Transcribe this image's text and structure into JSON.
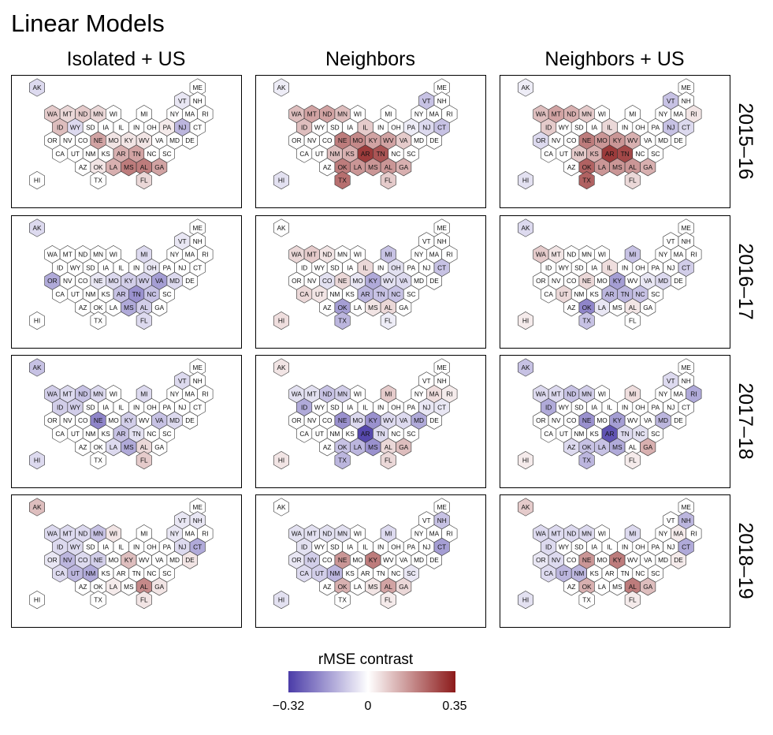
{
  "chart_data": {
    "type": "heatmap",
    "title": "Linear Models",
    "columns": [
      "Isolated + US",
      "Neighbors",
      "Neighbors + US"
    ],
    "rows": [
      "2015–16",
      "2016–17",
      "2017–18",
      "2018–19"
    ],
    "states": [
      "AK",
      "ME",
      "VT",
      "NH",
      "WA",
      "MT",
      "ND",
      "MN",
      "WI",
      "MI",
      "NY",
      "MA",
      "RI",
      "ID",
      "WY",
      "SD",
      "IA",
      "IL",
      "IN",
      "OH",
      "PA",
      "NJ",
      "CT",
      "OR",
      "NV",
      "CO",
      "NE",
      "MO",
      "KY",
      "WV",
      "VA",
      "MD",
      "DE",
      "CA",
      "UT",
      "NM",
      "KS",
      "AR",
      "TN",
      "NC",
      "SC",
      "AZ",
      "OK",
      "LA",
      "MS",
      "AL",
      "GA",
      "HI",
      "TX",
      "FL"
    ],
    "legend": {
      "title": "rMSE contrast",
      "min": -0.32,
      "max": 0.35,
      "tick_values": [
        -0.32,
        0,
        0.35
      ],
      "tick_labels": [
        "−0.32",
        "0",
        "0.35"
      ],
      "low_color": "#4b3ca8",
      "mid_color": "#ffffff",
      "high_color": "#8c1a1a"
    },
    "panels": [
      [
        {
          "NJ": -0.12,
          "NE": 0.14,
          "AR": 0.12,
          "TN": 0.14,
          "MS": 0.2,
          "AL": 0.2,
          "GA": 0.14,
          "LA": 0.12,
          "WA": 0.08,
          "MT": 0.06,
          "ND": 0.08,
          "MN": 0.06,
          "ID": 0.1,
          "WY": -0.06,
          "FL": 0.06,
          "KY": 0.04,
          "WV": 0.04,
          "MO": 0.04,
          "OK": 0.04,
          "AK": -0.06,
          "VT": -0.04,
          "PA": 0.03
        },
        {
          "WA": 0.1,
          "MT": 0.14,
          "ND": 0.14,
          "MN": 0.1,
          "ID": 0.1,
          "IL": 0.08,
          "NE": 0.2,
          "MO": 0.18,
          "KY": 0.14,
          "WV": 0.14,
          "VA": 0.08,
          "NM": 0.1,
          "KS": 0.12,
          "AR": 0.3,
          "TN": 0.26,
          "OK": 0.2,
          "LA": 0.16,
          "MS": 0.16,
          "AL": 0.16,
          "GA": 0.12,
          "TX": 0.22,
          "FL": 0.08,
          "VT": -0.1,
          "CT": -0.1,
          "NJ": -0.06,
          "HI": -0.05,
          "AK": -0.03,
          "PA": -0.03
        },
        {
          "WA": 0.1,
          "MT": 0.14,
          "ND": 0.12,
          "MN": 0.08,
          "ID": 0.08,
          "IL": 0.06,
          "NE": 0.2,
          "MO": 0.16,
          "KY": 0.16,
          "WV": 0.12,
          "NM": 0.08,
          "KS": 0.12,
          "AR": 0.3,
          "TN": 0.28,
          "OK": 0.24,
          "LA": 0.16,
          "MS": 0.16,
          "AL": 0.16,
          "GA": 0.12,
          "TX": 0.24,
          "FL": 0.06,
          "VT": -0.1,
          "NJ": -0.1,
          "CT": -0.06,
          "OR": -0.06,
          "HI": -0.05,
          "AK": -0.03,
          "RI": 0.04
        }
      ],
      [
        {
          "OR": -0.14,
          "VA": -0.16,
          "TN": -0.18,
          "MS": -0.14,
          "NC": -0.1,
          "AL": -0.08,
          "KY": -0.08,
          "WV": -0.08,
          "MO": -0.06,
          "AR": -0.1,
          "MI": -0.06,
          "FL": -0.06,
          "AK": -0.06,
          "VT": -0.04,
          "OH": -0.04,
          "NE": -0.04,
          "MD": -0.06
        },
        {
          "WA": 0.06,
          "MT": 0.08,
          "ND": 0.04,
          "IL": 0.06,
          "NE": 0.06,
          "CA": 0.06,
          "UT": 0.04,
          "AL": 0.06,
          "MS": 0.04,
          "KY": -0.14,
          "OK": -0.16,
          "AR": -0.12,
          "TN": -0.1,
          "NC": -0.1,
          "TX": -0.12,
          "CT": -0.1,
          "MI": -0.1,
          "VA": -0.06,
          "WV": -0.05,
          "MO": -0.04,
          "OH": -0.05,
          "HI": 0.05,
          "CO": -0.05,
          "FL": -0.03
        },
        {
          "WA": 0.08,
          "MT": 0.04,
          "IL": 0.05,
          "NE": 0.06,
          "UT": 0.06,
          "OK": -0.2,
          "KY": -0.16,
          "AR": -0.12,
          "TN": -0.12,
          "NC": -0.1,
          "TX": -0.1,
          "MI": -0.1,
          "CT": -0.08,
          "VA": -0.04,
          "MD": -0.06,
          "AK": -0.06,
          "HI": 0.03,
          "AL": 0.04,
          "LA": -0.04
        }
      ],
      [
        {
          "AK": -0.1,
          "NE": -0.2,
          "ND": -0.1,
          "WA": -0.08,
          "MT": -0.06,
          "ID": -0.08,
          "WY": -0.08,
          "MS": -0.14,
          "AR": -0.1,
          "VA": -0.1,
          "MN": -0.06,
          "MI": -0.06,
          "FL": 0.08,
          "AL": 0.06,
          "VT": -0.06,
          "HI": -0.06,
          "MD": -0.06,
          "KY": -0.08,
          "LA": -0.06,
          "TN": -0.05
        },
        {
          "AR": -0.3,
          "MS": -0.18,
          "KY": -0.18,
          "NE": -0.18,
          "ID": -0.14,
          "MD": -0.14,
          "ND": -0.1,
          "TX": -0.12,
          "LA": -0.12,
          "OK": -0.1,
          "MN": -0.08,
          "MO": -0.06,
          "WV": -0.06,
          "VA": -0.06,
          "MT": -0.05,
          "WA": -0.05,
          "MI": 0.08,
          "AL": 0.06,
          "GA": 0.1,
          "FL": 0.06,
          "AK": 0.04,
          "HI": 0.04,
          "MA": 0.05,
          "RI": 0.03,
          "CT": -0.04,
          "NJ": -0.04,
          "TN": -0.06
        },
        {
          "AK": -0.1,
          "AR": -0.28,
          "ID": -0.14,
          "NE": -0.18,
          "KY": -0.16,
          "MS": -0.14,
          "MD": -0.12,
          "RI": -0.14,
          "ND": -0.1,
          "TX": -0.12,
          "LA": -0.1,
          "OK": -0.1,
          "MN": -0.08,
          "WA": -0.06,
          "MT": -0.06,
          "VT": -0.06,
          "MI": 0.05,
          "GA": 0.12,
          "FL": 0.03,
          "HI": 0.03,
          "AZ": -0.06,
          "TN": -0.06,
          "NC": -0.05
        }
      ],
      [
        {
          "AK": 0.1,
          "AL": 0.18,
          "KY": 0.1,
          "MN": -0.1,
          "CT": -0.14,
          "UT": -0.12,
          "NM": -0.14,
          "NV": -0.12,
          "NE": -0.08,
          "WA": -0.06,
          "MT": -0.06,
          "ND": -0.06,
          "ID": -0.06,
          "WY": -0.06,
          "CO": -0.06,
          "CA": -0.06,
          "NJ": -0.06,
          "OR": -0.04,
          "VT": -0.04,
          "NH": -0.04,
          "DE": 0.04,
          "GA": 0.04,
          "FL": 0.04,
          "LA": 0.03,
          "WI": 0.04,
          "NY": -0.04
        },
        {
          "NE": 0.16,
          "KY": 0.2,
          "OK": 0.12,
          "AL": 0.14,
          "CT": -0.16,
          "NH": -0.1,
          "NM": -0.12,
          "UT": -0.08,
          "NV": -0.08,
          "MI": -0.06,
          "ID": -0.05,
          "WA": -0.05,
          "MT": -0.05,
          "ND": -0.05,
          "MN": -0.05,
          "CA": -0.06,
          "OR": -0.04,
          "HI": -0.05,
          "GA": 0.06,
          "MS": 0.04,
          "FL": 0.03,
          "SC": -0.04
        },
        {
          "AK": 0.08,
          "NE": 0.16,
          "KY": 0.2,
          "OK": 0.12,
          "AL": 0.2,
          "GA": 0.1,
          "CT": -0.14,
          "NH": -0.12,
          "UT": -0.12,
          "NM": -0.12,
          "MI": -0.06,
          "ID": -0.06,
          "WA": -0.06,
          "MT": -0.06,
          "ND": -0.06,
          "MN": -0.06,
          "CA": -0.06,
          "NV": -0.06,
          "OR": -0.04,
          "HI": -0.05,
          "MA": 0.03,
          "FL": 0.03,
          "DE": 0.03
        }
      ]
    ]
  }
}
